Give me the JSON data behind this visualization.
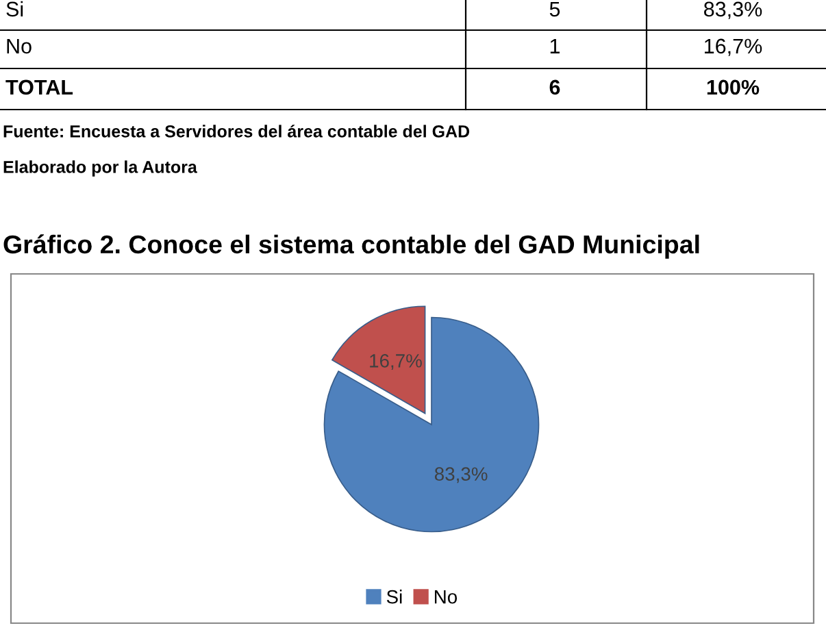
{
  "chart_data": {
    "type": "pie",
    "title": "Gráfico 2. Conoce el sistema contable del GAD Municipal",
    "categories": [
      "Si",
      "No"
    ],
    "values": [
      83.3,
      16.7
    ],
    "value_labels": [
      "83,3%",
      "16,7%"
    ],
    "colors": [
      "#4f81bd",
      "#c0504d"
    ],
    "legend": "bottom",
    "annotations": [
      "Si",
      "5",
      "83,3%",
      "No",
      "1",
      "16,7%",
      "TOTAL",
      "6",
      "100%",
      "Fuente: Encuesta a Servidores del área contable del GAD",
      "Elaborado por la Autora"
    ]
  }
}
